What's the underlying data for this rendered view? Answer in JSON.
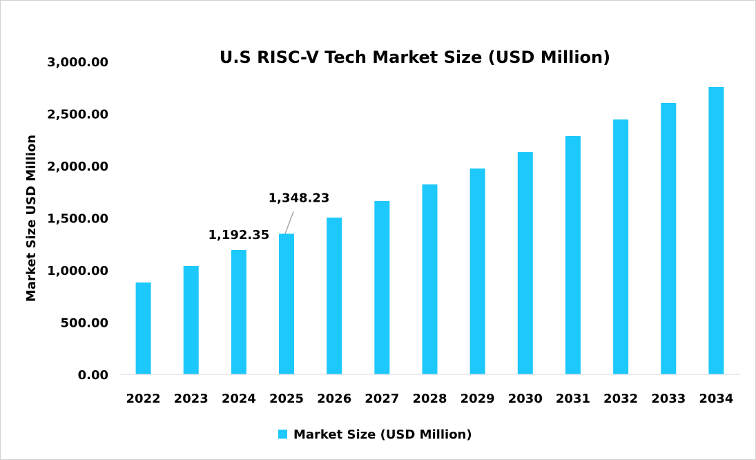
{
  "chart_data": {
    "type": "bar",
    "title": "U.S RISC-V Tech Market Size (USD Million)",
    "xlabel": "",
    "ylabel": "Market Size USD Million",
    "categories": [
      "2022",
      "2023",
      "2024",
      "2025",
      "2026",
      "2027",
      "2028",
      "2029",
      "2030",
      "2031",
      "2032",
      "2033",
      "2034"
    ],
    "series": [
      {
        "name": "Market Size (USD Million)",
        "color": "#1CC8FC",
        "values": [
          881,
          1040,
          1192.35,
          1348.23,
          1503,
          1662,
          1821,
          1974,
          2132,
          2285,
          2444,
          2603,
          2755
        ]
      }
    ],
    "data_labels": [
      {
        "category": "2024",
        "text": "1,192.35"
      },
      {
        "category": "2025",
        "text": "1,348.23"
      }
    ],
    "ylim": [
      0,
      3000
    ],
    "yticks": [
      0,
      500,
      1000,
      1500,
      2000,
      2500,
      3000
    ],
    "ytick_labels": [
      "0.00",
      "500.00",
      "1,000.00",
      "1,500.00",
      "2,000.00",
      "2,500.00",
      "3,000.00"
    ],
    "grid": false,
    "legend_position": "bottom"
  }
}
